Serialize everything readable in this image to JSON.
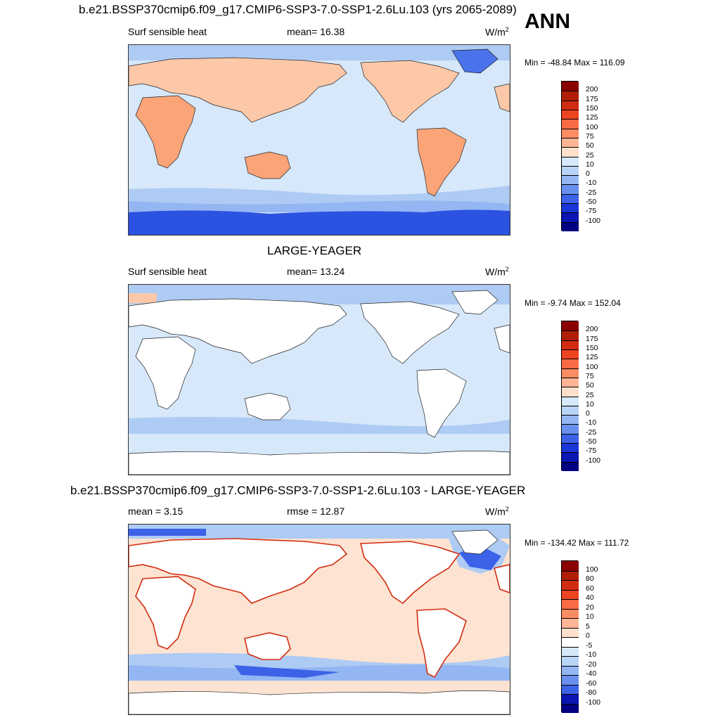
{
  "header": {
    "title": "b.e21.BSSP370cmip6.f09_g17.CMIP6-SSP3-7.0-SSP1-2.6Lu.103 (yrs 2065-2089)",
    "season": "ANN"
  },
  "panels": [
    {
      "title": "",
      "variable": "Surf sensible heat",
      "stat1": "mean=  16.38",
      "stat2": "",
      "units": "W/m",
      "units_sup": "2",
      "minmax": "Min = -48.84 Max = 116.09",
      "colorbar": {
        "labels": [
          "200",
          "175",
          "150",
          "125",
          "100",
          "75",
          "50",
          "25",
          "10",
          "0",
          "-10",
          "-25",
          "-50",
          "-75",
          "-100"
        ],
        "colors": [
          "#8b0000",
          "#b01e08",
          "#d22c10",
          "#ee4422",
          "#fa6a44",
          "#fc8c62",
          "#fdb596",
          "#fde0cc",
          "#d6e8fa",
          "#b8d4f6",
          "#94b6f2",
          "#6890ee",
          "#3c62e8",
          "#1a36d6",
          "#0c16b4",
          "#000080"
        ]
      },
      "map_fields": {
        "ocean": "#d6e8fa",
        "land_warm": "#fdc8a8",
        "land_hot": "#fba478",
        "cool_band": "#aecbf4",
        "antarctica": "#2c52e2",
        "greenland": "#4a72ea"
      }
    },
    {
      "title": "LARGE-YEAGER",
      "variable": "Surf sensible heat",
      "stat1": "mean=  13.24",
      "stat2": "",
      "units": "W/m",
      "units_sup": "2",
      "minmax": "Min =  -9.74 Max = 152.04",
      "colorbar": {
        "labels": [
          "200",
          "175",
          "150",
          "125",
          "100",
          "75",
          "50",
          "25",
          "10",
          "0",
          "-10",
          "-25",
          "-50",
          "-75",
          "-100"
        ],
        "colors": [
          "#8b0000",
          "#b01e08",
          "#d22c10",
          "#ee4422",
          "#fa6a44",
          "#fc8c62",
          "#fdb596",
          "#fde0cc",
          "#d6e8fa",
          "#b8d4f6",
          "#94b6f2",
          "#6890ee",
          "#3c62e8",
          "#1a36d6",
          "#0c16b4",
          "#000080"
        ]
      },
      "map_fields": {
        "ocean": "#d6e8fa",
        "land": "#ffffff",
        "cool_band": "#aecbf4",
        "warm_patch": "#fdc8a8"
      }
    },
    {
      "title": "b.e21.BSSP370cmip6.f09_g17.CMIP6-SSP3-7.0-SSP1-2.6Lu.103 - LARGE-YEAGER",
      "variable": "",
      "stat1": "mean =   3.15",
      "stat2": "rmse =  12.87",
      "units": "W/m",
      "units_sup": "2",
      "minmax": "Min = -134.42 Max = 111.72",
      "colorbar": {
        "labels": [
          "100",
          "80",
          "60",
          "40",
          "20",
          "10",
          "5",
          "0",
          "-5",
          "-10",
          "-20",
          "-40",
          "-60",
          "-80",
          "-100"
        ],
        "colors": [
          "#8b0000",
          "#b01e08",
          "#d22c10",
          "#ee4422",
          "#fa6a44",
          "#fc8c62",
          "#fdb596",
          "#fde0cc",
          "#ffffff",
          "#d6e8fa",
          "#b8d4f6",
          "#94b6f2",
          "#6890ee",
          "#3c62e8",
          "#0c16b4",
          "#000080"
        ]
      },
      "map_fields": {
        "ocean": "#fde3d2",
        "land": "#ffffff",
        "cool_band": "#aecbf4",
        "blue_strong": "#3c62e8",
        "red_coast": "#d22c10"
      }
    }
  ],
  "chart_data": [
    {
      "type": "heatmap",
      "title": "b.e21.BSSP370cmip6.f09_g17.CMIP6-SSP3-7.0-SSP1-2.6Lu.103 (yrs 2065-2089)",
      "variable": "Surf sensible heat",
      "units": "W/m2",
      "mean": 16.38,
      "min": -48.84,
      "max": 116.09,
      "levels": [
        -100,
        -75,
        -50,
        -25,
        -10,
        0,
        10,
        25,
        50,
        75,
        100,
        125,
        150,
        175,
        200
      ]
    },
    {
      "type": "heatmap",
      "title": "LARGE-YEAGER",
      "variable": "Surf sensible heat",
      "units": "W/m2",
      "mean": 13.24,
      "min": -9.74,
      "max": 152.04,
      "levels": [
        -100,
        -75,
        -50,
        -25,
        -10,
        0,
        10,
        25,
        50,
        75,
        100,
        125,
        150,
        175,
        200
      ]
    },
    {
      "type": "heatmap",
      "title": "b.e21.BSSP370cmip6.f09_g17.CMIP6-SSP3-7.0-SSP1-2.6Lu.103 - LARGE-YEAGER",
      "units": "W/m2",
      "mean": 3.15,
      "rmse": 12.87,
      "min": -134.42,
      "max": 111.72,
      "levels": [
        -100,
        -80,
        -60,
        -40,
        -20,
        -10,
        -5,
        0,
        5,
        10,
        20,
        40,
        60,
        80,
        100
      ]
    }
  ]
}
